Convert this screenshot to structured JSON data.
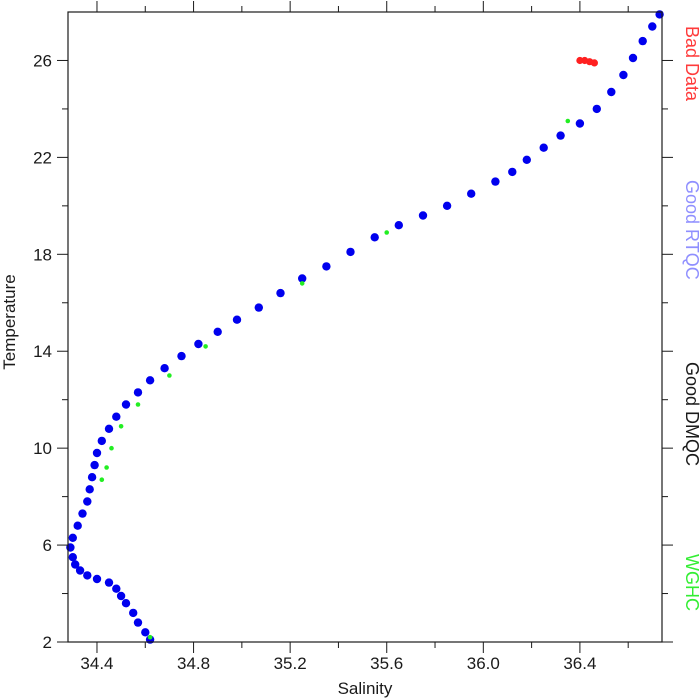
{
  "chart_data": {
    "type": "scatter",
    "xlabel": "Salinity",
    "ylabel": "Temperature",
    "xlim": [
      34.28,
      36.74
    ],
    "ylim": [
      2,
      28
    ],
    "xticks": [
      "34.4",
      "34.8",
      "35.2",
      "35.6",
      "36.0",
      "36.4"
    ],
    "yticks": [
      "2",
      "6",
      "10",
      "14",
      "18",
      "22",
      "26"
    ],
    "legend_placement": "right",
    "legend": [
      {
        "label": "Bad Data",
        "color": "#ff3b3b"
      },
      {
        "label": "Good RTQC",
        "color": "#8f8fff"
      },
      {
        "label": "Good DMQC",
        "color": "#1a1a1a"
      },
      {
        "label": "WGHC",
        "color": "#33ee33"
      }
    ],
    "series": [
      {
        "color": "#0000ee",
        "points": [
          [
            34.62,
            2.1
          ],
          [
            34.6,
            2.4
          ],
          [
            34.57,
            2.8
          ],
          [
            34.55,
            3.2
          ],
          [
            34.52,
            3.6
          ],
          [
            34.5,
            3.9
          ],
          [
            34.48,
            4.2
          ],
          [
            34.45,
            4.45
          ],
          [
            34.4,
            4.6
          ],
          [
            34.36,
            4.75
          ],
          [
            34.33,
            4.95
          ],
          [
            34.31,
            5.2
          ],
          [
            34.3,
            5.5
          ],
          [
            34.29,
            5.9
          ],
          [
            34.3,
            6.3
          ],
          [
            34.32,
            6.8
          ],
          [
            34.34,
            7.3
          ],
          [
            34.36,
            7.8
          ],
          [
            34.37,
            8.3
          ],
          [
            34.38,
            8.8
          ],
          [
            34.39,
            9.3
          ],
          [
            34.4,
            9.8
          ],
          [
            34.42,
            10.3
          ],
          [
            34.45,
            10.8
          ],
          [
            34.48,
            11.3
          ],
          [
            34.52,
            11.8
          ],
          [
            34.57,
            12.3
          ],
          [
            34.62,
            12.8
          ],
          [
            34.68,
            13.3
          ],
          [
            34.75,
            13.8
          ],
          [
            34.82,
            14.3
          ],
          [
            34.9,
            14.8
          ],
          [
            34.98,
            15.3
          ],
          [
            35.07,
            15.8
          ],
          [
            35.16,
            16.4
          ],
          [
            35.25,
            17.0
          ],
          [
            35.35,
            17.5
          ],
          [
            35.45,
            18.1
          ],
          [
            35.55,
            18.7
          ],
          [
            35.65,
            19.2
          ],
          [
            35.75,
            19.6
          ],
          [
            35.85,
            20.0
          ],
          [
            35.95,
            20.5
          ],
          [
            36.05,
            21.0
          ],
          [
            36.12,
            21.4
          ],
          [
            36.18,
            21.9
          ],
          [
            36.25,
            22.4
          ],
          [
            36.32,
            22.9
          ],
          [
            36.4,
            23.4
          ],
          [
            36.47,
            24.0
          ],
          [
            36.53,
            24.7
          ],
          [
            36.58,
            25.4
          ],
          [
            36.62,
            26.1
          ],
          [
            36.66,
            26.8
          ],
          [
            36.7,
            27.4
          ],
          [
            36.73,
            27.9
          ]
        ]
      },
      {
        "color": "#ff2020",
        "points": [
          [
            36.4,
            26.0
          ],
          [
            36.42,
            26.0
          ],
          [
            36.44,
            25.95
          ],
          [
            36.46,
            25.9
          ]
        ]
      },
      {
        "color": "#22ee22",
        "points": [
          [
            34.62,
            2.2
          ],
          [
            34.42,
            8.7
          ],
          [
            34.44,
            9.2
          ],
          [
            34.46,
            10.0
          ],
          [
            34.5,
            10.9
          ],
          [
            34.57,
            11.8
          ],
          [
            34.7,
            13.0
          ],
          [
            34.85,
            14.2
          ],
          [
            35.25,
            16.8
          ],
          [
            35.6,
            18.9
          ],
          [
            36.35,
            23.5
          ]
        ]
      }
    ]
  }
}
